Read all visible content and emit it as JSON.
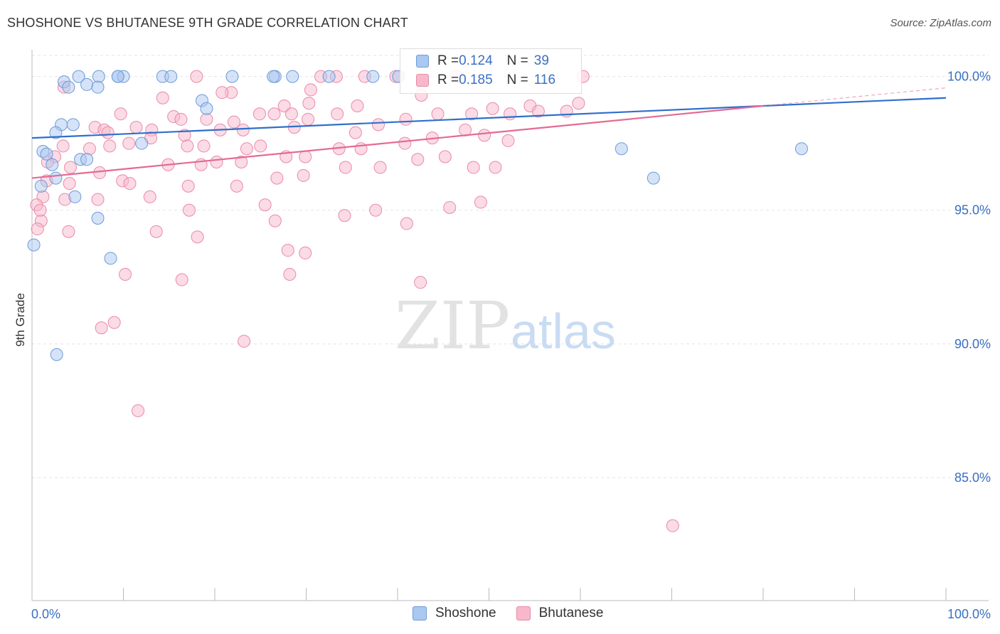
{
  "title": "SHOSHONE VS BHUTANESE 9TH GRADE CORRELATION CHART",
  "source": "Source: ZipAtlas.com",
  "watermark": {
    "zip": "ZIP",
    "atlas": "atlas"
  },
  "legend": {
    "rows": [
      {
        "r_label": "R = ",
        "r_value": "0.124",
        "n_label": "N = ",
        "n_value": "39"
      },
      {
        "r_label": "R = ",
        "r_value": "0.185",
        "n_label": "N = ",
        "n_value": "116"
      }
    ]
  },
  "colors": {
    "shoshone_fill": "#aac8f0",
    "shoshone_stroke": "#6f9ad8",
    "shoshone_line": "#2f6fcc",
    "bhutanese_fill": "#f7b8cb",
    "bhutanese_stroke": "#e98aa8",
    "bhutanese_line": "#e46a94",
    "axis_label": "#3a6fc4",
    "grid": "#e3e3e3"
  },
  "chart_data": {
    "type": "scatter",
    "title": "SHOSHONE VS BHUTANESE 9TH GRADE CORRELATION CHART",
    "xlabel": "",
    "ylabel": "9th Grade",
    "xlim": [
      0,
      100
    ],
    "ylim": [
      80.4,
      101.0
    ],
    "x_tick_labels": [
      "0.0%",
      "100.0%"
    ],
    "y_ticks": [
      100,
      95,
      90,
      85
    ],
    "y_tick_labels": [
      "100.0%",
      "95.0%",
      "90.0%",
      "85.0%"
    ],
    "grid": true,
    "legend_position": "bottom-center",
    "series": [
      {
        "name": "Shoshone",
        "r": 0.124,
        "n": 39,
        "trend": {
          "x": [
            0,
            100
          ],
          "y": [
            97.7,
            99.2
          ]
        },
        "points": [
          [
            5.1,
            100.0
          ],
          [
            7.3,
            100.0
          ],
          [
            9.4,
            100.0
          ],
          [
            10.0,
            100.0
          ],
          [
            9.4,
            100.0
          ],
          [
            14.3,
            100.0
          ],
          [
            15.2,
            100.0
          ],
          [
            21.9,
            100.0
          ],
          [
            28.5,
            100.0
          ],
          [
            32.5,
            100.0
          ],
          [
            40.1,
            100.0
          ],
          [
            37.3,
            100.0
          ],
          [
            3.5,
            99.8
          ],
          [
            4.0,
            99.6
          ],
          [
            6.0,
            99.7
          ],
          [
            7.2,
            99.6
          ],
          [
            18.6,
            99.1
          ],
          [
            19.1,
            98.8
          ],
          [
            3.2,
            98.2
          ],
          [
            4.5,
            98.2
          ],
          [
            2.6,
            97.9
          ],
          [
            12.0,
            97.5
          ],
          [
            1.2,
            97.2
          ],
          [
            1.6,
            97.1
          ],
          [
            2.2,
            96.7
          ],
          [
            5.3,
            96.9
          ],
          [
            6.0,
            96.9
          ],
          [
            2.6,
            96.2
          ],
          [
            1.0,
            95.9
          ],
          [
            4.7,
            95.5
          ],
          [
            7.2,
            94.7
          ],
          [
            0.2,
            93.7
          ],
          [
            8.6,
            93.2
          ],
          [
            2.7,
            89.6
          ],
          [
            64.5,
            97.3
          ],
          [
            84.2,
            97.3
          ],
          [
            68.0,
            96.2
          ],
          [
            26.6,
            100.0
          ],
          [
            26.4,
            100.0
          ]
        ]
      },
      {
        "name": "Bhutanese",
        "r": 0.185,
        "n": 116,
        "trend": {
          "x": [
            0,
            80
          ],
          "y": [
            96.2,
            98.9
          ]
        },
        "points": [
          [
            18.0,
            100.0
          ],
          [
            21.8,
            99.4
          ],
          [
            14.3,
            99.2
          ],
          [
            30.5,
            99.5
          ],
          [
            35.6,
            98.9
          ],
          [
            27.6,
            98.9
          ],
          [
            33.3,
            100.0
          ],
          [
            36.4,
            100.0
          ],
          [
            31.6,
            100.0
          ],
          [
            39.8,
            100.0
          ],
          [
            46.4,
            100.0
          ],
          [
            54.5,
            98.9
          ],
          [
            42.6,
            99.3
          ],
          [
            15.5,
            98.5
          ],
          [
            16.3,
            98.4
          ],
          [
            19.1,
            98.4
          ],
          [
            24.9,
            98.6
          ],
          [
            22.1,
            98.3
          ],
          [
            20.8,
            99.4
          ],
          [
            26.5,
            98.6
          ],
          [
            28.4,
            98.6
          ],
          [
            30.2,
            98.4
          ],
          [
            33.4,
            98.6
          ],
          [
            37.9,
            98.2
          ],
          [
            40.9,
            98.4
          ],
          [
            3.5,
            99.6
          ],
          [
            9.7,
            98.6
          ],
          [
            11.4,
            98.1
          ],
          [
            6.9,
            98.1
          ],
          [
            7.9,
            98.0
          ],
          [
            8.3,
            97.9
          ],
          [
            13.1,
            98.0
          ],
          [
            16.7,
            97.8
          ],
          [
            20.6,
            98.0
          ],
          [
            23.1,
            98.0
          ],
          [
            28.7,
            98.1
          ],
          [
            35.4,
            97.9
          ],
          [
            44.4,
            98.6
          ],
          [
            48.1,
            98.6
          ],
          [
            50.4,
            98.8
          ],
          [
            52.3,
            98.6
          ],
          [
            58.5,
            98.7
          ],
          [
            60.3,
            100.0
          ],
          [
            3.4,
            97.4
          ],
          [
            6.3,
            97.3
          ],
          [
            8.5,
            97.4
          ],
          [
            10.6,
            97.5
          ],
          [
            13.0,
            97.7
          ],
          [
            17.0,
            97.4
          ],
          [
            18.8,
            97.4
          ],
          [
            23.5,
            97.3
          ],
          [
            25.0,
            97.4
          ],
          [
            27.8,
            97.0
          ],
          [
            29.9,
            97.0
          ],
          [
            33.6,
            97.3
          ],
          [
            36.0,
            97.3
          ],
          [
            40.8,
            97.5
          ],
          [
            43.8,
            97.7
          ],
          [
            47.4,
            98.0
          ],
          [
            49.5,
            97.8
          ],
          [
            52.1,
            97.6
          ],
          [
            2.5,
            97.0
          ],
          [
            4.2,
            96.6
          ],
          [
            7.4,
            96.4
          ],
          [
            9.9,
            96.1
          ],
          [
            14.9,
            96.7
          ],
          [
            18.5,
            96.7
          ],
          [
            20.2,
            96.8
          ],
          [
            22.9,
            96.8
          ],
          [
            26.8,
            96.2
          ],
          [
            29.7,
            96.3
          ],
          [
            34.3,
            96.6
          ],
          [
            38.1,
            96.6
          ],
          [
            42.2,
            96.9
          ],
          [
            45.2,
            97.0
          ],
          [
            48.3,
            96.6
          ],
          [
            50.7,
            96.6
          ],
          [
            1.6,
            96.1
          ],
          [
            4.1,
            96.0
          ],
          [
            10.7,
            96.0
          ],
          [
            17.1,
            95.9
          ],
          [
            22.4,
            95.9
          ],
          [
            1.2,
            95.5
          ],
          [
            3.6,
            95.4
          ],
          [
            7.2,
            95.4
          ],
          [
            0.5,
            95.2
          ],
          [
            12.9,
            95.5
          ],
          [
            17.2,
            95.0
          ],
          [
            26.6,
            94.6
          ],
          [
            34.2,
            94.8
          ],
          [
            37.6,
            95.0
          ],
          [
            41.0,
            94.5
          ],
          [
            45.7,
            95.1
          ],
          [
            49.1,
            95.3
          ],
          [
            1.0,
            94.6
          ],
          [
            0.6,
            94.3
          ],
          [
            4.0,
            94.2
          ],
          [
            13.6,
            94.2
          ],
          [
            18.1,
            94.0
          ],
          [
            28.0,
            93.5
          ],
          [
            29.9,
            93.4
          ],
          [
            10.2,
            92.6
          ],
          [
            16.4,
            92.4
          ],
          [
            28.2,
            92.6
          ],
          [
            42.5,
            92.3
          ],
          [
            7.6,
            90.6
          ],
          [
            9.0,
            90.8
          ],
          [
            23.2,
            90.1
          ],
          [
            11.6,
            87.5
          ],
          [
            70.1,
            83.2
          ],
          [
            1.7,
            96.8
          ],
          [
            0.9,
            95.0
          ],
          [
            55.4,
            98.7
          ],
          [
            59.8,
            99.0
          ],
          [
            30.3,
            99.0
          ],
          [
            25.5,
            95.2
          ]
        ]
      }
    ]
  },
  "bottom_legend": [
    "Shoshone",
    "Bhutanese"
  ]
}
